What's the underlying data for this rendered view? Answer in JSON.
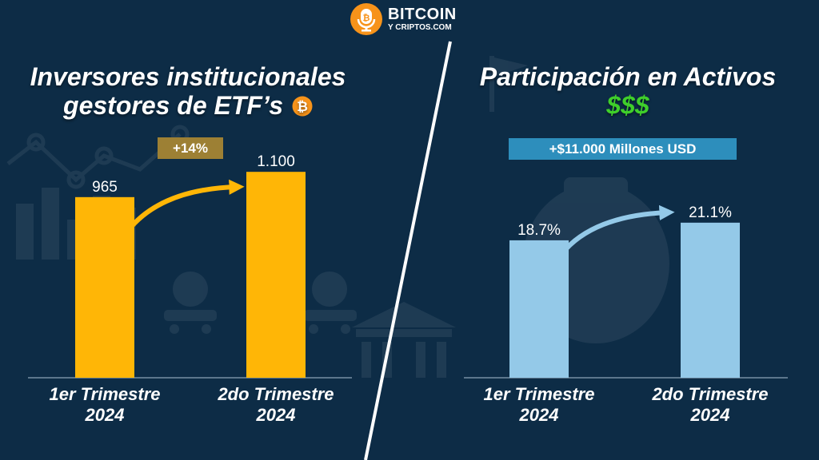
{
  "brand": {
    "name_line1": "BITCOIN",
    "name_line2": "Y CRIPTOS.COM",
    "icon": "bitcoin-microphone-icon",
    "accent": "#f7931a"
  },
  "colors": {
    "background": "#0d2c46",
    "left_bar": "#ffb606",
    "right_bar": "#94c9e8",
    "left_badge": "#9d8034",
    "right_badge": "#2d8ebc",
    "dollars": "#3fcf2a"
  },
  "left_panel": {
    "title_line1": "Inversores institucionales",
    "title_line2": "gestores de ETF’s",
    "title_icon": "bitcoin-coin-icon",
    "badge": "+14%"
  },
  "right_panel": {
    "title_line1": "Participación en Activos",
    "title_line2": "$$$",
    "badge": "+$11.000 Millones USD"
  },
  "chart_data": [
    {
      "type": "bar",
      "title": "Inversores institucionales gestores de ETF’s",
      "categories": [
        "1er Trimestre 2024",
        "2do Trimestre 2024"
      ],
      "category_lines": [
        [
          "1er Trimestre",
          "2024"
        ],
        [
          "2do Trimestre",
          "2024"
        ]
      ],
      "values": [
        965,
        1100
      ],
      "value_labels": [
        "965",
        "1.100"
      ],
      "annotation": "+14%",
      "ylim": [
        0,
        1280
      ],
      "grid": false,
      "color": "#ffb606"
    },
    {
      "type": "bar",
      "title": "Participación en Activos",
      "categories": [
        "1er Trimestre 2024",
        "2do Trimestre 2024"
      ],
      "category_lines": [
        [
          "1er Trimestre",
          "2024"
        ],
        [
          "2do Trimestre",
          "2024"
        ]
      ],
      "values": [
        18.7,
        21.1
      ],
      "value_labels": [
        "18.7%",
        "21.1%"
      ],
      "annotation": "+$11.000 Millones USD",
      "ylim": [
        0,
        32.6
      ],
      "grid": false,
      "color": "#94c9e8"
    }
  ]
}
